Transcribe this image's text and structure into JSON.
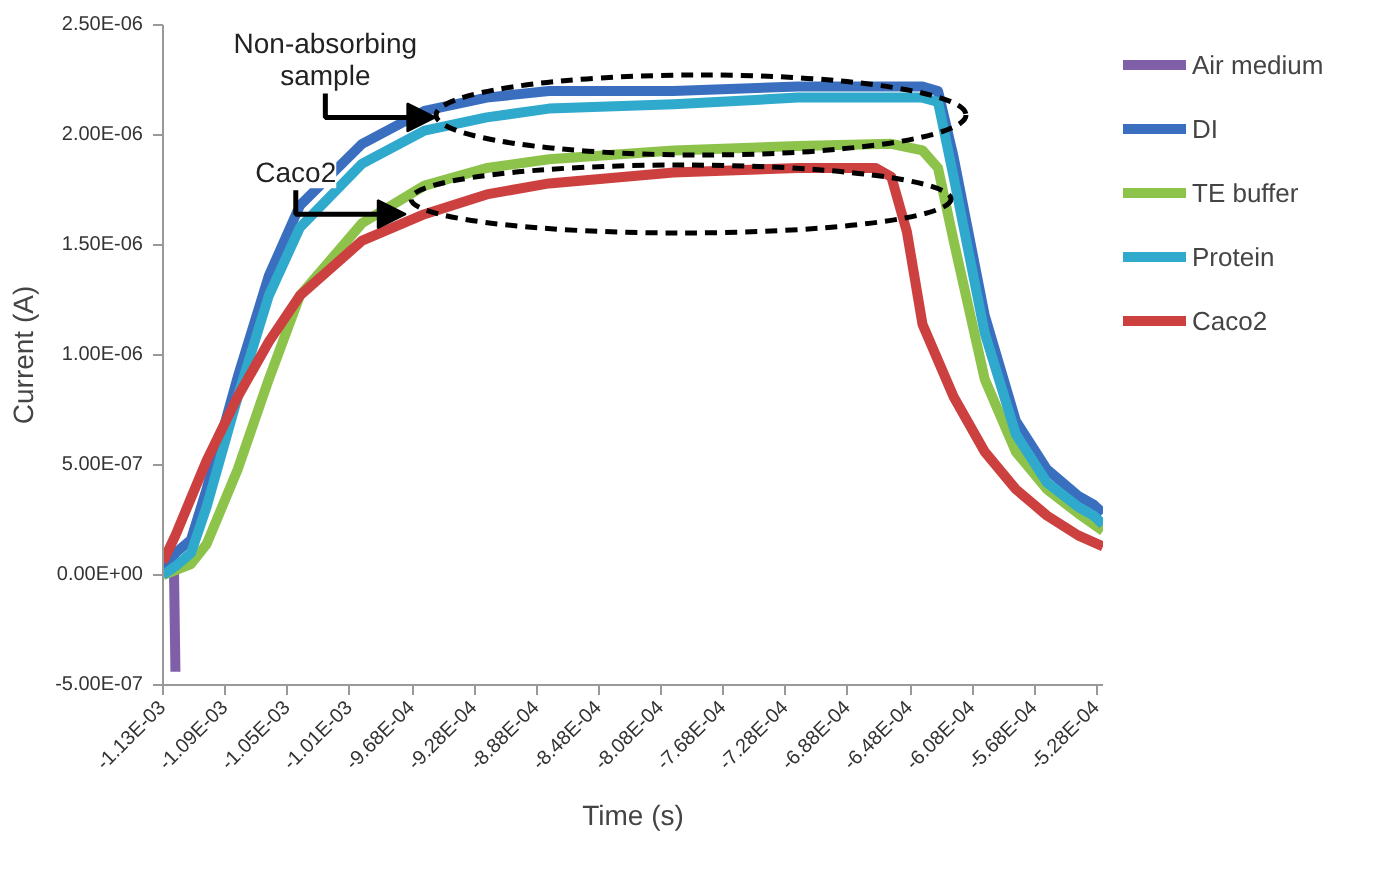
{
  "chart_data": {
    "type": "line",
    "xlabel": "Time (s)",
    "ylabel": "Current (A)",
    "xlim": [
      -0.001128,
      -0.000524
    ],
    "xticks": [
      {
        "value": -0.001128,
        "label": "-1.13E-03"
      },
      {
        "value": -0.001088,
        "label": "-1.09E-03"
      },
      {
        "value": -0.001048,
        "label": "-1.05E-03"
      },
      {
        "value": -0.001008,
        "label": "-1.01E-03"
      },
      {
        "value": -0.000968,
        "label": "-9.68E-04"
      },
      {
        "value": -0.000928,
        "label": "-9.28E-04"
      },
      {
        "value": -0.000888,
        "label": "-8.88E-04"
      },
      {
        "value": -0.000848,
        "label": "-8.48E-04"
      },
      {
        "value": -0.000808,
        "label": "-8.08E-04"
      },
      {
        "value": -0.000768,
        "label": "-7.68E-04"
      },
      {
        "value": -0.000728,
        "label": "-7.28E-04"
      },
      {
        "value": -0.000688,
        "label": "-6.88E-04"
      },
      {
        "value": -0.000648,
        "label": "-6.48E-04"
      },
      {
        "value": -0.000608,
        "label": "-6.08E-04"
      },
      {
        "value": -0.000568,
        "label": "-5.68E-04"
      },
      {
        "value": -0.000528,
        "label": "-5.28E-04"
      }
    ],
    "ylim": [
      -5e-07,
      2.5e-06
    ],
    "yticks": [
      {
        "value": -5e-07,
        "label": "-5.00E-07"
      },
      {
        "value": 0,
        "label": "0.00E+00"
      },
      {
        "value": 5e-07,
        "label": "5.00E-07"
      },
      {
        "value": 1e-06,
        "label": "1.00E-06"
      },
      {
        "value": 1.5e-06,
        "label": "1.50E-06"
      },
      {
        "value": 2e-06,
        "label": "2.00E-06"
      },
      {
        "value": 2.5e-06,
        "label": "2.50E-06"
      }
    ],
    "grid": false,
    "legend": "right",
    "marker": "none",
    "line_style": "solid",
    "annotations": [
      {
        "text": "Non-absorbing\nsample",
        "x": -0.000953,
        "y": 2.08e-06
      },
      {
        "text": "Caco2",
        "x": -0.000972,
        "y": 1.64e-06
      }
    ],
    "series": [
      {
        "name": "Air medium",
        "color": "#7f5fa8",
        "x": [
          -0.001121,
          -0.00112
        ],
        "values": [
          5e-08,
          -4.4e-07
        ]
      },
      {
        "name": "DI",
        "color": "#3a6fc0",
        "x": [
          -0.001128,
          -0.00112,
          -0.00111,
          -0.0011,
          -0.00108,
          -0.00106,
          -0.00104,
          -0.001,
          -0.00096,
          -0.00092,
          -0.00088,
          -0.0008,
          -0.00072,
          -0.00064,
          -0.00063,
          -0.00062,
          -0.0006,
          -0.00058,
          -0.00056,
          -0.00054,
          -0.00053,
          -0.000524
        ],
        "values": [
          0,
          1e-07,
          1.6e-07,
          3.9e-07,
          9e-07,
          1.36e-06,
          1.68e-06,
          1.96e-06,
          2.11e-06,
          2.17e-06,
          2.2e-06,
          2.2e-06,
          2.22e-06,
          2.22e-06,
          2.2e-06,
          1.9e-06,
          1.18e-06,
          7e-07,
          4.8e-07,
          3.6e-07,
          3.2e-07,
          2.8e-07
        ]
      },
      {
        "name": "TE buffer",
        "color": "#8dc34a",
        "x": [
          -0.001128,
          -0.00111,
          -0.0011,
          -0.00108,
          -0.00106,
          -0.00104,
          -0.001,
          -0.00096,
          -0.00092,
          -0.00088,
          -0.0008,
          -0.00072,
          -0.00066,
          -0.00064,
          -0.00063,
          -0.00062,
          -0.0006,
          -0.00058,
          -0.00056,
          -0.00054,
          -0.000524
        ],
        "values": [
          0,
          5e-08,
          1.4e-07,
          4.8e-07,
          8.9e-07,
          1.27e-06,
          1.6e-06,
          1.77e-06,
          1.85e-06,
          1.89e-06,
          1.93e-06,
          1.95e-06,
          1.96e-06,
          1.93e-06,
          1.85e-06,
          1.52e-06,
          8.9e-07,
          5.6e-07,
          3.9e-07,
          2.8e-07,
          2e-07
        ]
      },
      {
        "name": "Protein",
        "color": "#2fa9cc",
        "x": [
          -0.001128,
          -0.00112,
          -0.00111,
          -0.0011,
          -0.00108,
          -0.00106,
          -0.00104,
          -0.001,
          -0.00096,
          -0.00092,
          -0.00088,
          -0.0008,
          -0.00072,
          -0.00064,
          -0.00063,
          -0.00062,
          -0.0006,
          -0.00058,
          -0.00056,
          -0.00054,
          -0.00053,
          -0.000524
        ],
        "values": [
          0,
          4e-08,
          1e-07,
          3.1e-07,
          8.1e-07,
          1.27e-06,
          1.58e-06,
          1.87e-06,
          2.02e-06,
          2.08e-06,
          2.12e-06,
          2.14e-06,
          2.17e-06,
          2.17e-06,
          2.15e-06,
          1.81e-06,
          1.1e-06,
          6.4e-07,
          4.2e-07,
          3.1e-07,
          2.7e-07,
          2.3e-07
        ]
      },
      {
        "name": "Caco2",
        "color": "#cc403f",
        "x": [
          -0.001128,
          -0.00112,
          -0.00111,
          -0.0011,
          -0.00108,
          -0.00106,
          -0.00104,
          -0.001,
          -0.00096,
          -0.00092,
          -0.00088,
          -0.0008,
          -0.00072,
          -0.00067,
          -0.00066,
          -0.00065,
          -0.00064,
          -0.00062,
          -0.0006,
          -0.00058,
          -0.00056,
          -0.00054,
          -0.000524
        ],
        "values": [
          6e-08,
          1.8e-07,
          3.5e-07,
          5.2e-07,
          8.1e-07,
          1.06e-06,
          1.27e-06,
          1.52e-06,
          1.64e-06,
          1.73e-06,
          1.78e-06,
          1.83e-06,
          1.85e-06,
          1.85e-06,
          1.81e-06,
          1.56e-06,
          1.14e-06,
          8.1e-07,
          5.6e-07,
          3.9e-07,
          2.7e-07,
          1.8e-07,
          1.3e-07
        ]
      }
    ]
  }
}
